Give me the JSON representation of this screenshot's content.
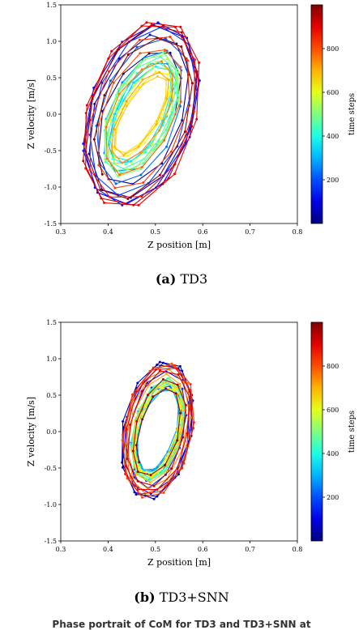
{
  "chart_data": [
    {
      "type": "line",
      "panel": "a",
      "caption_label": "(a)",
      "caption_text": "TD3",
      "xlabel": "Z position [m]",
      "ylabel": "Z velocity [m/s]",
      "xlim": [
        0.3,
        0.8
      ],
      "ylim": [
        -1.5,
        1.5
      ],
      "xticks": [
        "0.3",
        "0.4",
        "0.5",
        "0.6",
        "0.7",
        "0.8"
      ],
      "yticks": [
        "-1.5",
        "-1.0",
        "-0.5",
        "0.0",
        "0.5",
        "1.0",
        "1.5"
      ],
      "colorbar": {
        "label": "time steps",
        "range": [
          0,
          1000
        ],
        "ticks": [
          "200",
          "400",
          "600",
          "800"
        ],
        "colormap": "jet"
      },
      "orbit": {
        "center_x": 0.47,
        "center_y": 0.0,
        "rx_min": 0.02,
        "rx_max": 0.12,
        "ry_min": 0.35,
        "ry_max": 1.3,
        "time_steps": 1000,
        "tilt": 0.04
      },
      "grid": false
    },
    {
      "type": "line",
      "panel": "b",
      "caption_label": "(b)",
      "caption_text": "TD3+SNN",
      "xlabel": "Z position [m]",
      "ylabel": "Z velocity [m/s]",
      "xlim": [
        0.3,
        0.8
      ],
      "ylim": [
        -1.5,
        1.5
      ],
      "xticks": [
        "0.3",
        "0.4",
        "0.5",
        "0.6",
        "0.7",
        "0.8"
      ],
      "yticks": [
        "-1.5",
        "-1.0",
        "-0.5",
        "0.0",
        "0.5",
        "1.0",
        "1.5"
      ],
      "colorbar": {
        "label": "time steps",
        "range": [
          0,
          1000
        ],
        "ticks": [
          "200",
          "400",
          "600",
          "800"
        ],
        "colormap": "jet"
      },
      "orbit": {
        "center_x": 0.505,
        "center_y": 0.02,
        "rx_min": 0.03,
        "rx_max": 0.075,
        "ry_min": 0.45,
        "ry_max": 0.95,
        "time_steps": 1000,
        "tilt": 0.02
      },
      "grid": false
    }
  ],
  "figure_caption": "Phase portrait of CoM for TD3 and TD3+SNN at"
}
